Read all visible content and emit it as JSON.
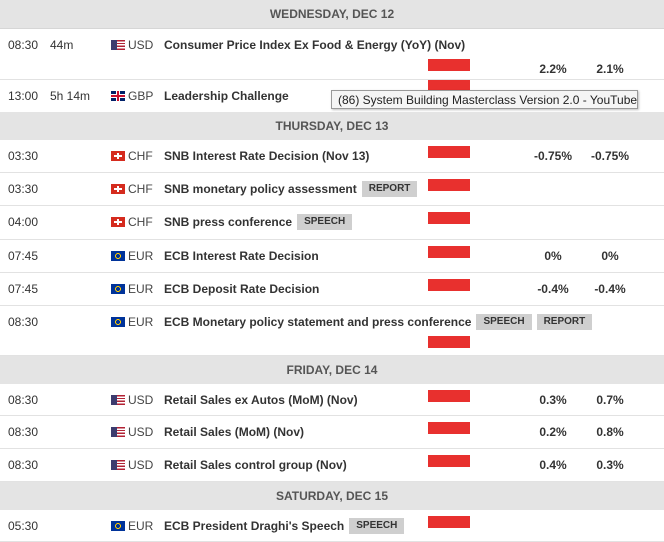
{
  "days": [
    {
      "title": "WEDNESDAY, DEC 12",
      "events": [
        {
          "time": "08:30",
          "countdown": "44m",
          "currency": "USD",
          "name": "Consumer Price Index Ex Food & Energy (YoY) (Nov)",
          "values": [
            "2.2%",
            "2.1%"
          ]
        },
        {
          "time": "13:00",
          "countdown": "5h 14m",
          "currency": "GBP",
          "name": "Leadership Challenge"
        }
      ]
    },
    {
      "title": "THURSDAY, DEC 13",
      "events": [
        {
          "time": "03:30",
          "currency": "CHF",
          "name": "SNB Interest Rate Decision (Nov 13)",
          "values": [
            "-0.75%",
            "-0.75%"
          ]
        },
        {
          "time": "03:30",
          "currency": "CHF",
          "name": "SNB monetary policy assessment",
          "tags": [
            "REPORT"
          ]
        },
        {
          "time": "04:00",
          "currency": "CHF",
          "name": "SNB press conference",
          "tags": [
            "SPEECH"
          ]
        },
        {
          "time": "07:45",
          "currency": "EUR",
          "name": "ECB Interest Rate Decision",
          "values": [
            "0%",
            "0%"
          ]
        },
        {
          "time": "07:45",
          "currency": "EUR",
          "name": "ECB Deposit Rate Decision",
          "values": [
            "-0.4%",
            "-0.4%"
          ]
        },
        {
          "time": "08:30",
          "currency": "EUR",
          "name": "ECB Monetary policy statement and press conference",
          "tags": [
            "SPEECH",
            "REPORT"
          ]
        }
      ]
    },
    {
      "title": "FRIDAY, DEC 14",
      "events": [
        {
          "time": "08:30",
          "currency": "USD",
          "name": "Retail Sales ex Autos (MoM) (Nov)",
          "values": [
            "0.3%",
            "0.7%"
          ]
        },
        {
          "time": "08:30",
          "currency": "USD",
          "name": "Retail Sales (MoM) (Nov)",
          "values": [
            "0.2%",
            "0.8%"
          ]
        },
        {
          "time": "08:30",
          "currency": "USD",
          "name": "Retail Sales control group (Nov)",
          "values": [
            "0.4%",
            "0.3%"
          ]
        }
      ]
    },
    {
      "title": "SATURDAY, DEC 15",
      "events": [
        {
          "time": "05:30",
          "currency": "EUR",
          "name": "ECB President Draghi's Speech",
          "tags": [
            "SPEECH"
          ]
        }
      ]
    }
  ],
  "tooltip": "(86) System Building Masterclass Version 2.0 - YouTube"
}
